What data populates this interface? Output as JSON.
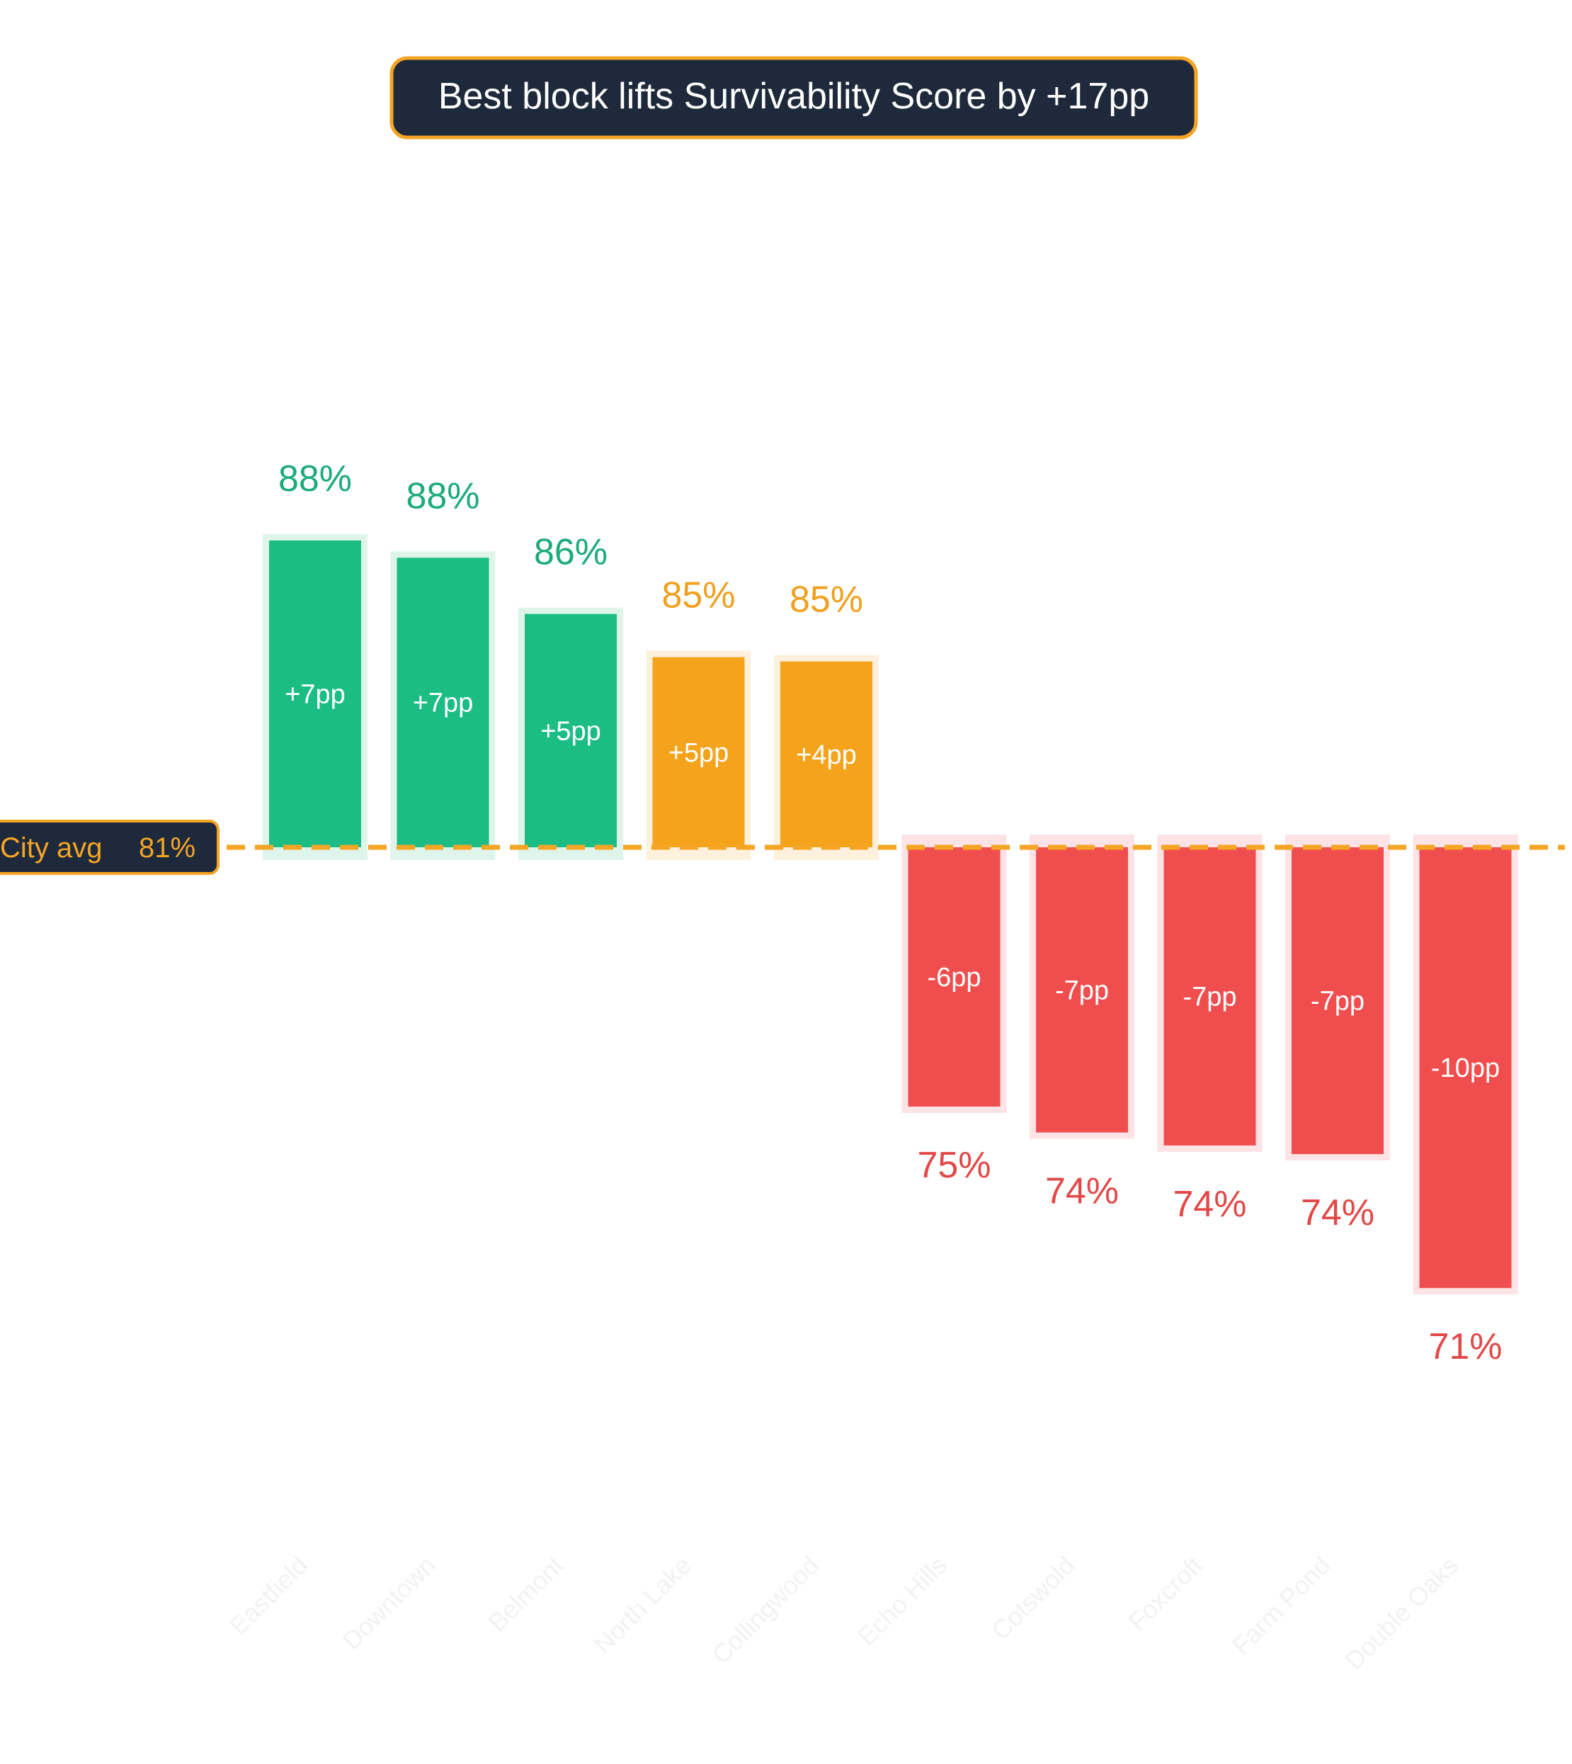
{
  "chart_data": {
    "type": "bar",
    "title": "Best block lifts Survivability Score by +17pp",
    "baseline": {
      "label": "City avg",
      "value_label": "81%",
      "value": 81
    },
    "categories": [
      "Eastfield",
      "Downtown",
      "Belmont",
      "North Lake",
      "Collingwood",
      "Echo Hills",
      "Cotswold",
      "Foxcroft",
      "Farm Pond",
      "Double Oaks"
    ],
    "values": [
      88.1,
      87.7,
      86.4,
      85.4,
      85.3,
      75.0,
      74.4,
      74.1,
      73.9,
      70.8
    ],
    "value_labels": [
      "88%",
      "88%",
      "86%",
      "85%",
      "85%",
      "75%",
      "74%",
      "74%",
      "74%",
      "71%"
    ],
    "delta_labels": [
      "+7pp",
      "+7pp",
      "+5pp",
      "+5pp",
      "+4pp",
      "-6pp",
      "-7pp",
      "-7pp",
      "-7pp",
      "-10pp"
    ],
    "colors": [
      "#1bbd85",
      "#1bbd85",
      "#1bbd85",
      "#f5a31a",
      "#f5a31a",
      "#f04e4e",
      "#f04e4e",
      "#f04e4e",
      "#f04e4e",
      "#f04e4e"
    ],
    "halo_colors": [
      "#dff5ec",
      "#dff5ec",
      "#dff5ec",
      "#fdf0dc",
      "#fdf0dc",
      "#fde3e6",
      "#fde3e6",
      "#fde3e6",
      "#fde3e6",
      "#fde3e6"
    ],
    "label_colors": [
      "#1bab7a",
      "#1bab7a",
      "#1bab7a",
      "#f0a01e",
      "#f0a01e",
      "#e34848",
      "#e34848",
      "#e34848",
      "#e34848",
      "#e34848"
    ],
    "accent_color": "#f5a524",
    "title_bg": "#1e2a3b",
    "grid": false,
    "legend": "none"
  }
}
